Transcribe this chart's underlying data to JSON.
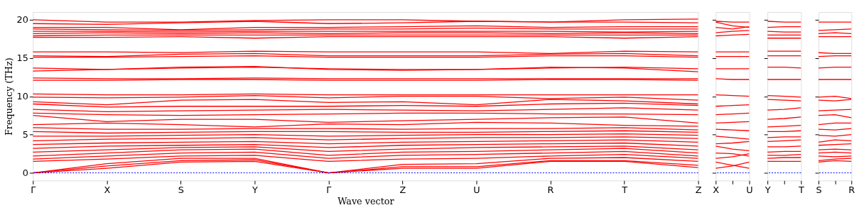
{
  "chart_data": [
    {
      "type": "line",
      "xlabel": "Wave vector",
      "ylabel": "Frequency (THz)",
      "tick_labels": "xy",
      "legend": false,
      "grid": false,
      "line_style": "solid",
      "marker": "none",
      "categories": [
        "Γ",
        "X",
        "S",
        "Y",
        "Γ",
        "Z",
        "U",
        "R",
        "T",
        "Z"
      ],
      "ylim": [
        -1,
        21
      ],
      "yticks": [
        0,
        5,
        10,
        15,
        20
      ],
      "ref_lines": [
        {
          "axis": "y",
          "value": 0,
          "color": "#0000ff",
          "line_style": "dotted"
        }
      ],
      "series": [
        {
          "color": "#ff0000",
          "values": [
            0,
            0.6,
            1.4,
            1.5,
            0,
            0.6,
            0.6,
            1.5,
            1.5,
            0.7
          ]
        },
        {
          "color": "#ff0000",
          "values": [
            0,
            0.9,
            1.6,
            1.7,
            0,
            0.8,
            0.8,
            1.6,
            1.6,
            1.0
          ]
        },
        {
          "color": "#ff0000",
          "values": [
            0,
            1.2,
            1.9,
            1.9,
            0,
            1.1,
            1.2,
            1.9,
            2.0,
            1.5
          ]
        },
        {
          "color": "#ff0000",
          "values": [
            1.5,
            1.8,
            2.2,
            2.3,
            1.5,
            1.8,
            1.9,
            2.2,
            2.4,
            1.9
          ]
        },
        {
          "color": "#ff0000",
          "values": [
            1.8,
            2.2,
            2.6,
            2.7,
            1.9,
            2.3,
            2.4,
            2.6,
            2.8,
            2.2
          ]
        },
        {
          "color": "#ff0000",
          "values": [
            2.2,
            2.6,
            3.0,
            3.1,
            2.3,
            2.7,
            2.8,
            3.0,
            3.2,
            2.6
          ]
        },
        {
          "color": "#ff0000",
          "values": [
            2.7,
            3.0,
            3.3,
            3.4,
            2.8,
            3.1,
            3.3,
            3.4,
            3.5,
            3.0
          ]
        },
        {
          "color": "#ff0000",
          "values": [
            3.2,
            3.5,
            3.6,
            3.7,
            3.3,
            3.6,
            3.7,
            3.8,
            3.9,
            3.5
          ]
        },
        {
          "color": "#ff0000",
          "values": [
            3.7,
            3.9,
            4.0,
            4.1,
            3.8,
            4.0,
            4.1,
            4.2,
            4.3,
            4.0
          ]
        },
        {
          "color": "#ff0000",
          "values": [
            4.2,
            4.4,
            4.5,
            4.6,
            4.3,
            4.5,
            4.6,
            4.6,
            4.7,
            4.5
          ]
        },
        {
          "color": "#ff0000",
          "values": [
            4.8,
            4.8,
            4.9,
            5.0,
            4.8,
            4.9,
            5.0,
            5.0,
            5.1,
            4.9
          ]
        },
        {
          "color": "#ff0000",
          "values": [
            5.4,
            5.2,
            5.3,
            5.4,
            5.4,
            5.3,
            5.3,
            5.4,
            5.5,
            5.3
          ]
        },
        {
          "color": "#ff0000",
          "values": [
            5.9,
            5.7,
            5.7,
            5.8,
            5.8,
            5.7,
            5.8,
            5.8,
            5.9,
            5.6
          ]
        },
        {
          "color": "#ff0000",
          "values": [
            6.3,
            6.5,
            6.3,
            6.0,
            6.4,
            6.3,
            6.6,
            6.5,
            6.2,
            6.1
          ]
        },
        {
          "color": "#ff0000",
          "values": [
            7.5,
            6.7,
            7.0,
            7.0,
            6.6,
            6.8,
            7.0,
            7.2,
            7.3,
            6.5
          ]
        },
        {
          "color": "#ff0000",
          "values": [
            7.8,
            7.6,
            7.5,
            7.6,
            7.7,
            7.8,
            7.8,
            7.7,
            7.7,
            7.6
          ]
        },
        {
          "color": "#ff0000",
          "values": [
            8.3,
            8.0,
            8.1,
            8.2,
            8.3,
            8.2,
            8.1,
            8.3,
            8.5,
            8.2
          ]
        },
        {
          "color": "#ff0000",
          "values": [
            9.0,
            8.6,
            8.7,
            8.7,
            8.7,
            8.8,
            8.7,
            9.0,
            9.1,
            8.8
          ]
        },
        {
          "color": "#ff0000",
          "values": [
            9.3,
            8.9,
            9.5,
            9.6,
            9.2,
            9.3,
            8.9,
            9.6,
            9.4,
            9.0
          ]
        },
        {
          "color": "#ff0000",
          "values": [
            9.9,
            9.8,
            9.9,
            10.1,
            9.8,
            10.0,
            10.0,
            9.7,
            9.9,
            9.5
          ]
        },
        {
          "color": "#ff0000",
          "values": [
            10.3,
            10.2,
            10.2,
            10.3,
            10.2,
            10.2,
            10.2,
            10.2,
            10.2,
            10.2
          ]
        },
        {
          "color": "#ff0000",
          "values": [
            12.1,
            12.1,
            12.2,
            12.2,
            12.1,
            12.1,
            12.1,
            12.2,
            12.2,
            12.1
          ]
        },
        {
          "color": "#ff0000",
          "values": [
            12.4,
            12.3,
            12.3,
            12.4,
            12.3,
            12.3,
            12.3,
            12.3,
            12.3,
            12.3
          ]
        },
        {
          "color": "#ff0000",
          "values": [
            13.3,
            13.5,
            13.7,
            13.8,
            13.6,
            13.5,
            13.5,
            13.8,
            13.7,
            13.2
          ]
        },
        {
          "color": "#ff0000",
          "values": [
            13.7,
            13.5,
            13.8,
            13.9,
            13.5,
            13.4,
            13.5,
            13.7,
            13.8,
            13.6
          ]
        },
        {
          "color": "#ff0000",
          "values": [
            15.1,
            15.1,
            15.2,
            15.3,
            15.1,
            15.1,
            15.1,
            15.3,
            15.3,
            15.1
          ]
        },
        {
          "color": "#ff0000",
          "values": [
            15.3,
            15.2,
            15.5,
            15.6,
            15.3,
            15.3,
            15.3,
            15.5,
            15.6,
            15.3
          ]
        },
        {
          "color": "#ff0000",
          "values": [
            15.8,
            15.8,
            15.7,
            15.9,
            15.8,
            15.8,
            15.8,
            15.6,
            15.9,
            15.8
          ]
        },
        {
          "color": "#ff0000",
          "values": [
            17.7,
            17.7,
            17.8,
            17.6,
            17.8,
            17.8,
            17.8,
            17.8,
            17.6,
            17.8
          ]
        },
        {
          "color": "#ff0000",
          "values": [
            17.9,
            18.0,
            18.0,
            18.0,
            18.0,
            18.0,
            18.0,
            18.0,
            18.0,
            18.0
          ]
        },
        {
          "color": "#ff0000",
          "values": [
            18.2,
            18.3,
            18.2,
            18.3,
            18.2,
            18.3,
            18.3,
            18.2,
            18.3,
            18.2
          ]
        },
        {
          "color": "#ff0000",
          "values": [
            18.5,
            18.5,
            18.4,
            18.5,
            18.5,
            18.5,
            18.5,
            18.5,
            18.4,
            18.5
          ]
        },
        {
          "color": "#ff0000",
          "values": [
            18.8,
            18.7,
            18.6,
            18.7,
            18.8,
            18.8,
            18.9,
            18.8,
            18.8,
            18.8
          ]
        },
        {
          "color": "#ff0000",
          "values": [
            19.0,
            19.0,
            18.7,
            19.0,
            19.0,
            19.1,
            19.2,
            19.0,
            19.1,
            19.1
          ]
        },
        {
          "color": "#ff0000",
          "values": [
            19.5,
            19.4,
            19.6,
            19.8,
            19.5,
            19.6,
            19.8,
            19.7,
            19.7,
            19.6
          ]
        },
        {
          "color": "#ff0000",
          "values": [
            20.0,
            19.7,
            19.7,
            19.9,
            20.0,
            20.0,
            19.8,
            19.7,
            20.0,
            20.1
          ]
        }
      ]
    },
    {
      "type": "line",
      "tick_labels": "x",
      "legend": false,
      "grid": false,
      "line_style": "solid",
      "marker": "none",
      "categories": [
        "X",
        null,
        "U"
      ],
      "ylim": [
        -1,
        21
      ],
      "yticks": [
        {
          "value": 0,
          "label": null
        },
        {
          "value": 5,
          "label": null
        },
        {
          "value": 10,
          "label": null
        },
        {
          "value": 15,
          "label": null
        },
        {
          "value": 20,
          "label": null
        }
      ],
      "ref_lines": [
        {
          "axis": "y",
          "value": 0,
          "color": "#0000ff",
          "line_style": "dotted"
        }
      ],
      "series": [
        {
          "color": "#ff0000",
          "values": [
            0.6,
            0.9,
            1.4
          ]
        },
        {
          "color": "#ff0000",
          "values": [
            1.4,
            1.0,
            0.6
          ]
        },
        {
          "color": "#ff0000",
          "values": [
            1.9,
            2.1,
            2.5
          ]
        },
        {
          "color": "#ff0000",
          "values": [
            2.6,
            2.5,
            2.2
          ]
        },
        {
          "color": "#ff0000",
          "values": [
            3.5,
            3.1,
            2.9
          ]
        },
        {
          "color": "#ff0000",
          "values": [
            3.8,
            3.9,
            4.1
          ]
        },
        {
          "color": "#ff0000",
          "values": [
            4.8,
            4.6,
            4.4
          ]
        },
        {
          "color": "#ff0000",
          "values": [
            5.7,
            5.6,
            5.5
          ]
        },
        {
          "color": "#ff0000",
          "values": [
            6.5,
            6.6,
            6.7
          ]
        },
        {
          "color": "#ff0000",
          "values": [
            7.6,
            7.7,
            7.8
          ]
        },
        {
          "color": "#ff0000",
          "values": [
            8.7,
            8.8,
            8.9
          ]
        },
        {
          "color": "#ff0000",
          "values": [
            10.2,
            10.1,
            10.0
          ]
        },
        {
          "color": "#ff0000",
          "values": [
            12.3,
            12.2,
            12.2
          ]
        },
        {
          "color": "#ff0000",
          "values": [
            13.6,
            13.6,
            13.6
          ]
        },
        {
          "color": "#ff0000",
          "values": [
            15.2,
            15.2,
            15.2
          ]
        },
        {
          "color": "#ff0000",
          "values": [
            15.8,
            15.8,
            15.8
          ]
        },
        {
          "color": "#ff0000",
          "values": [
            17.9,
            18.0,
            18.1
          ]
        },
        {
          "color": "#ff0000",
          "values": [
            18.3,
            18.5,
            18.6
          ]
        },
        {
          "color": "#ff0000",
          "values": [
            19.0,
            18.8,
            19.1
          ]
        },
        {
          "color": "#ff0000",
          "values": [
            19.7,
            19.2,
            19.0
          ]
        },
        {
          "color": "#ff0000",
          "values": [
            19.8,
            19.7,
            19.7
          ]
        }
      ]
    },
    {
      "type": "line",
      "tick_labels": "x",
      "legend": false,
      "grid": false,
      "line_style": "solid",
      "marker": "none",
      "categories": [
        "Y",
        null,
        "T"
      ],
      "ylim": [
        -1,
        21
      ],
      "yticks": [
        {
          "value": 0,
          "label": null
        },
        {
          "value": 5,
          "label": null
        },
        {
          "value": 10,
          "label": null
        },
        {
          "value": 15,
          "label": null
        },
        {
          "value": 20,
          "label": null
        }
      ],
      "ref_lines": [
        {
          "axis": "y",
          "value": 0,
          "color": "#0000ff",
          "line_style": "dotted"
        }
      ],
      "series": [
        {
          "color": "#ff0000",
          "values": [
            1.5,
            1.5,
            1.5
          ]
        },
        {
          "color": "#ff0000",
          "values": [
            1.9,
            2.0,
            2.0
          ]
        },
        {
          "color": "#ff0000",
          "values": [
            2.3,
            2.3,
            2.4
          ]
        },
        {
          "color": "#ff0000",
          "values": [
            2.7,
            2.8,
            2.8
          ]
        },
        {
          "color": "#ff0000",
          "values": [
            3.4,
            3.4,
            3.5
          ]
        },
        {
          "color": "#ff0000",
          "values": [
            4.1,
            4.2,
            4.3
          ]
        },
        {
          "color": "#ff0000",
          "values": [
            4.6,
            4.7,
            4.7
          ]
        },
        {
          "color": "#ff0000",
          "values": [
            5.4,
            5.4,
            5.5
          ]
        },
        {
          "color": "#ff0000",
          "values": [
            6.0,
            6.1,
            6.2
          ]
        },
        {
          "color": "#ff0000",
          "values": [
            7.0,
            7.1,
            7.3
          ]
        },
        {
          "color": "#ff0000",
          "values": [
            8.2,
            8.3,
            8.5
          ]
        },
        {
          "color": "#ff0000",
          "values": [
            9.6,
            9.5,
            9.4
          ]
        },
        {
          "color": "#ff0000",
          "values": [
            10.1,
            10.0,
            9.9
          ]
        },
        {
          "color": "#ff0000",
          "values": [
            12.2,
            12.2,
            12.2
          ]
        },
        {
          "color": "#ff0000",
          "values": [
            13.8,
            13.8,
            13.7
          ]
        },
        {
          "color": "#ff0000",
          "values": [
            15.3,
            15.3,
            15.3
          ]
        },
        {
          "color": "#ff0000",
          "values": [
            15.9,
            15.9,
            15.9
          ]
        },
        {
          "color": "#ff0000",
          "values": [
            17.6,
            17.6,
            17.6
          ]
        },
        {
          "color": "#ff0000",
          "values": [
            18.0,
            18.0,
            18.0
          ]
        },
        {
          "color": "#ff0000",
          "values": [
            18.5,
            18.4,
            18.4
          ]
        },
        {
          "color": "#ff0000",
          "values": [
            19.0,
            19.1,
            19.1
          ]
        },
        {
          "color": "#ff0000",
          "values": [
            19.8,
            19.7,
            19.7
          ]
        }
      ]
    },
    {
      "type": "line",
      "tick_labels": "x",
      "legend": false,
      "grid": false,
      "line_style": "solid",
      "marker": "none",
      "categories": [
        "S",
        null,
        "R"
      ],
      "ylim": [
        -1,
        21
      ],
      "yticks": [
        {
          "value": 0,
          "label": null
        },
        {
          "value": 5,
          "label": null
        },
        {
          "value": 10,
          "label": null
        },
        {
          "value": 15,
          "label": null
        },
        {
          "value": 20,
          "label": null
        }
      ],
      "ref_lines": [
        {
          "axis": "y",
          "value": 0,
          "color": "#0000ff",
          "line_style": "dotted"
        }
      ],
      "series": [
        {
          "color": "#ff0000",
          "values": [
            1.4,
            1.6,
            1.5
          ]
        },
        {
          "color": "#ff0000",
          "values": [
            1.6,
            1.8,
            1.9
          ]
        },
        {
          "color": "#ff0000",
          "values": [
            2.2,
            2.1,
            2.2
          ]
        },
        {
          "color": "#ff0000",
          "values": [
            2.6,
            2.7,
            2.6
          ]
        },
        {
          "color": "#ff0000",
          "values": [
            3.0,
            3.1,
            3.0
          ]
        },
        {
          "color": "#ff0000",
          "values": [
            3.6,
            3.7,
            3.8
          ]
        },
        {
          "color": "#ff0000",
          "values": [
            4.0,
            4.3,
            4.2
          ]
        },
        {
          "color": "#ff0000",
          "values": [
            4.9,
            4.8,
            5.0
          ]
        },
        {
          "color": "#ff0000",
          "values": [
            5.7,
            5.6,
            5.8
          ]
        },
        {
          "color": "#ff0000",
          "values": [
            6.3,
            6.5,
            6.5
          ]
        },
        {
          "color": "#ff0000",
          "values": [
            7.5,
            7.6,
            7.2
          ]
        },
        {
          "color": "#ff0000",
          "values": [
            8.1,
            8.2,
            8.3
          ]
        },
        {
          "color": "#ff0000",
          "values": [
            9.5,
            9.4,
            9.6
          ]
        },
        {
          "color": "#ff0000",
          "values": [
            9.9,
            10.0,
            9.7
          ]
        },
        {
          "color": "#ff0000",
          "values": [
            12.2,
            12.2,
            12.2
          ]
        },
        {
          "color": "#ff0000",
          "values": [
            13.7,
            13.8,
            13.8
          ]
        },
        {
          "color": "#ff0000",
          "values": [
            15.2,
            15.3,
            15.3
          ]
        },
        {
          "color": "#ff0000",
          "values": [
            15.7,
            15.6,
            15.6
          ]
        },
        {
          "color": "#ff0000",
          "values": [
            17.8,
            17.8,
            17.8
          ]
        },
        {
          "color": "#ff0000",
          "values": [
            18.2,
            18.3,
            18.2
          ]
        },
        {
          "color": "#ff0000",
          "values": [
            18.6,
            18.7,
            18.8
          ]
        },
        {
          "color": "#ff0000",
          "values": [
            19.7,
            19.7,
            19.7
          ]
        }
      ]
    }
  ]
}
